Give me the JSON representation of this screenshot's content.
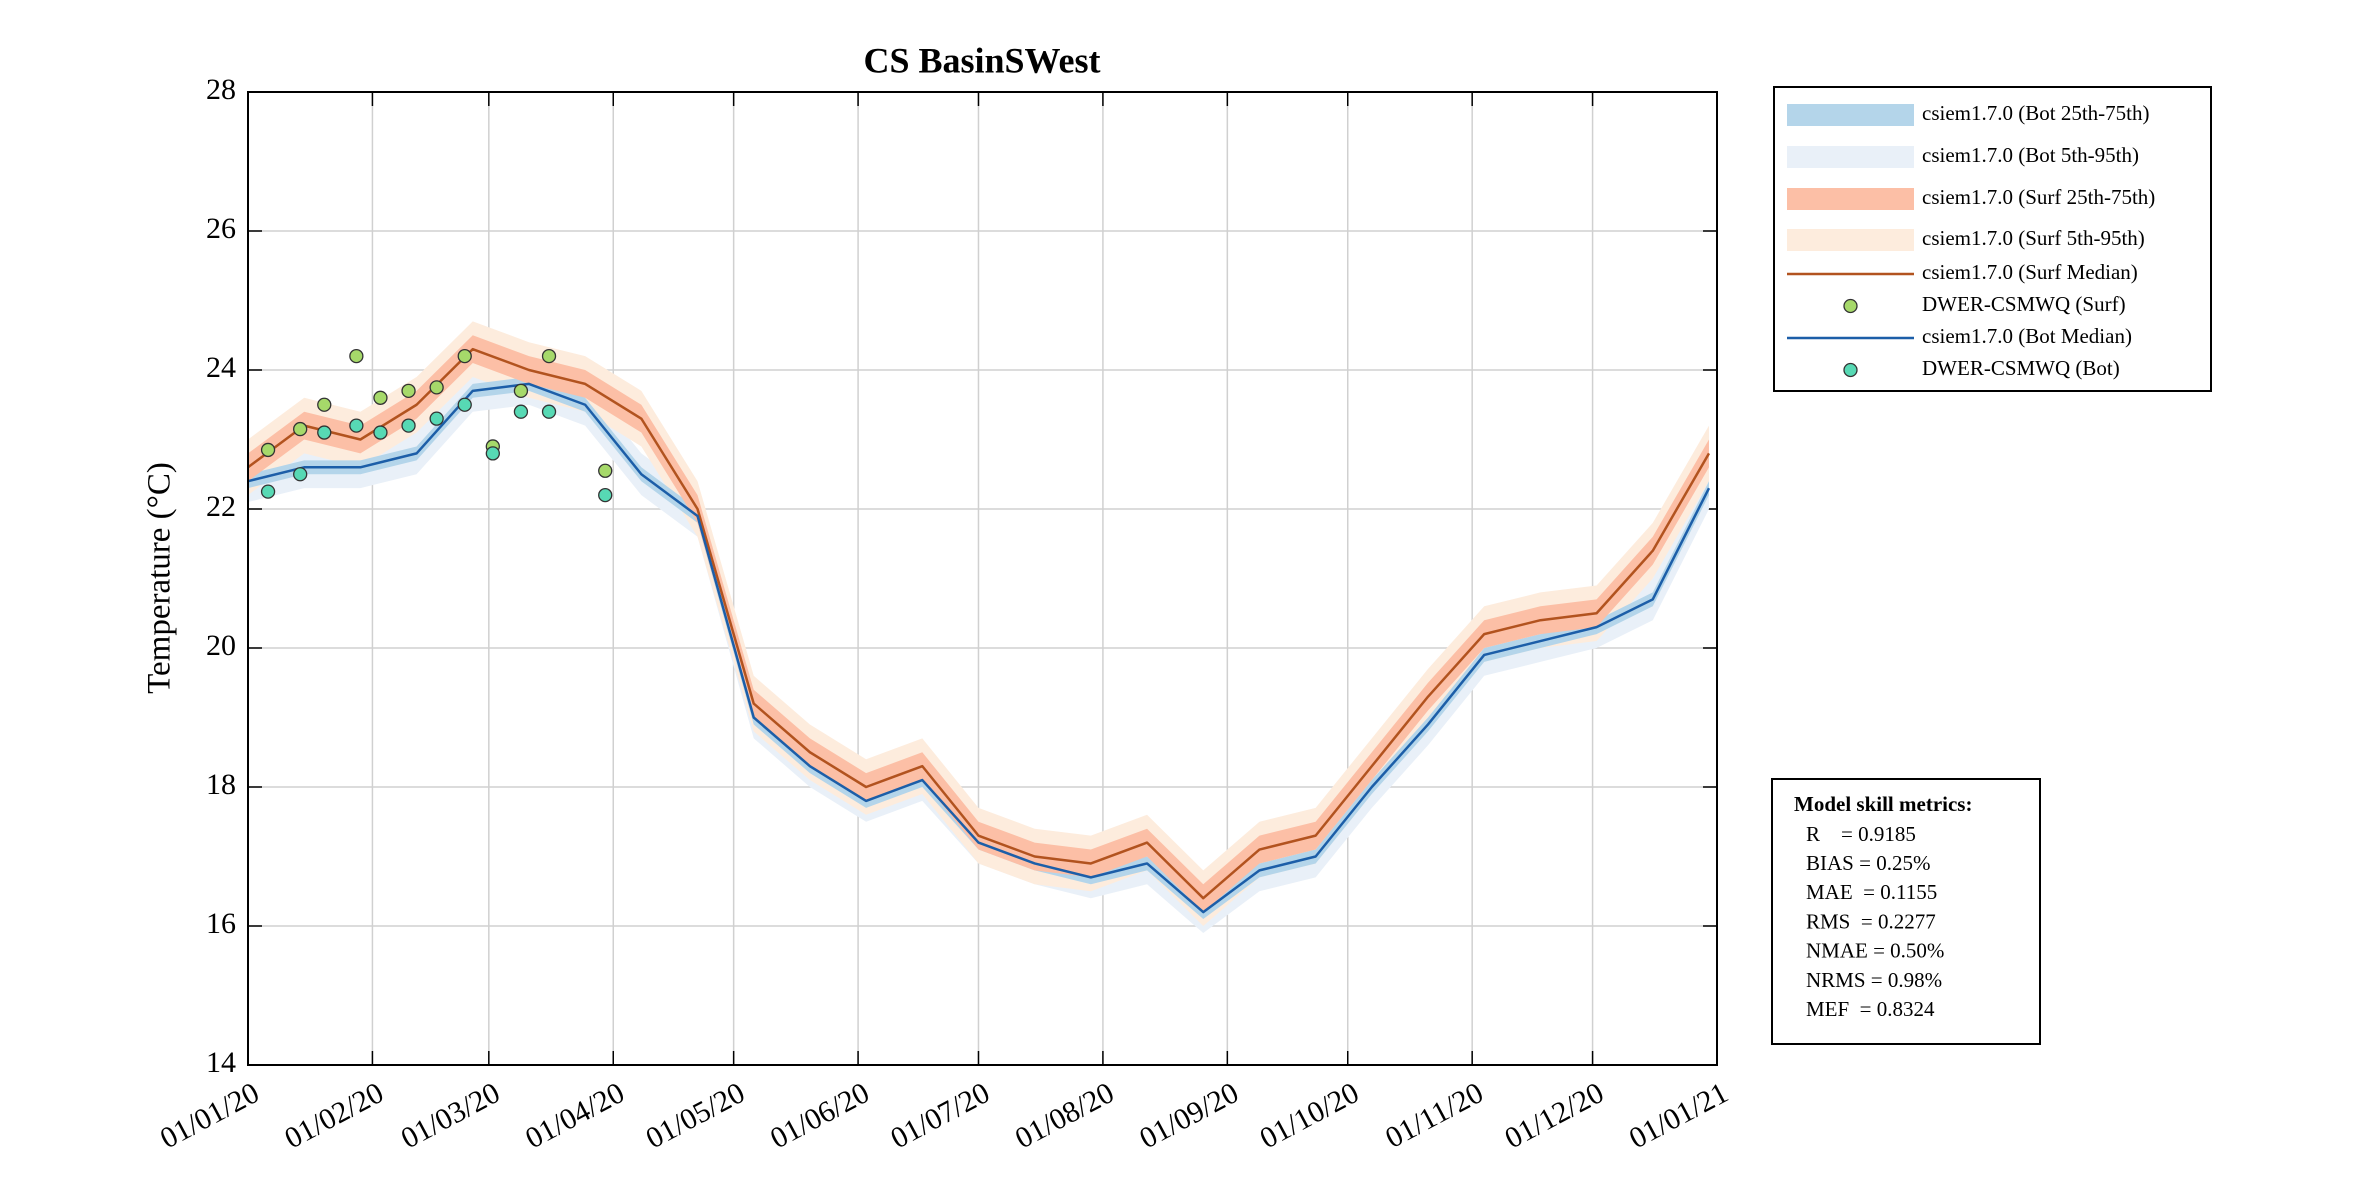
{
  "chart_data": {
    "type": "line",
    "title": "CS BasinSWest",
    "ylabel": "Temperature (°C)",
    "xlim": [
      "2020-01-01",
      "2021-01-01"
    ],
    "xticks": [
      {
        "value": "2020-01-01",
        "label": "01/01/20"
      },
      {
        "value": "2020-02-01",
        "label": "01/02/20"
      },
      {
        "value": "2020-03-01",
        "label": "01/03/20"
      },
      {
        "value": "2020-04-01",
        "label": "01/04/20"
      },
      {
        "value": "2020-05-01",
        "label": "01/05/20"
      },
      {
        "value": "2020-06-01",
        "label": "01/06/20"
      },
      {
        "value": "2020-07-01",
        "label": "01/07/20"
      },
      {
        "value": "2020-08-01",
        "label": "01/08/20"
      },
      {
        "value": "2020-09-01",
        "label": "01/09/20"
      },
      {
        "value": "2020-10-01",
        "label": "01/10/20"
      },
      {
        "value": "2020-11-01",
        "label": "01/11/20"
      },
      {
        "value": "2020-12-01",
        "label": "01/12/20"
      },
      {
        "value": "2021-01-01",
        "label": "01/01/21"
      }
    ],
    "ylim": [
      14,
      28
    ],
    "yticks": [
      14,
      16,
      18,
      20,
      22,
      24,
      26,
      28
    ],
    "grid": true,
    "legend": "outside-right-top",
    "x": [
      "2020-01-01",
      "2020-01-15",
      "2020-01-29",
      "2020-02-12",
      "2020-02-26",
      "2020-03-11",
      "2020-03-25",
      "2020-04-08",
      "2020-04-22",
      "2020-05-06",
      "2020-05-20",
      "2020-06-03",
      "2020-06-17",
      "2020-07-01",
      "2020-07-15",
      "2020-07-29",
      "2020-08-12",
      "2020-08-26",
      "2020-09-09",
      "2020-09-23",
      "2020-10-07",
      "2020-10-21",
      "2020-11-04",
      "2020-11-18",
      "2020-12-02",
      "2020-12-16",
      "2020-12-30"
    ],
    "series": [
      {
        "name": "csiem1.7.0 (Bot 25th-75th)",
        "style": "band",
        "color": "#b4d5ea",
        "lower": [
          22.3,
          22.5,
          22.5,
          22.7,
          23.6,
          23.7,
          23.4,
          22.4,
          21.8,
          18.9,
          18.2,
          17.7,
          18.0,
          17.1,
          16.8,
          16.6,
          16.8,
          16.1,
          16.7,
          16.9,
          17.9,
          18.8,
          19.8,
          20.0,
          20.2,
          20.6,
          22.2
        ],
        "upper": [
          22.5,
          22.7,
          22.7,
          22.9,
          23.8,
          23.9,
          23.6,
          22.6,
          22.0,
          19.1,
          18.4,
          17.9,
          18.2,
          17.3,
          17.0,
          16.8,
          17.0,
          16.3,
          16.9,
          17.1,
          18.1,
          19.0,
          20.0,
          20.2,
          20.4,
          20.8,
          22.4
        ]
      },
      {
        "name": "csiem1.7.0 (Bot 5th-95th)",
        "style": "band",
        "color": "#e9f0f8",
        "lower": [
          22.1,
          22.3,
          22.3,
          22.5,
          23.4,
          23.5,
          23.2,
          22.2,
          21.6,
          18.7,
          18.0,
          17.5,
          17.8,
          16.9,
          16.6,
          16.4,
          16.6,
          15.9,
          16.5,
          16.7,
          17.7,
          18.6,
          19.6,
          19.8,
          20.0,
          20.4,
          22.0
        ],
        "upper": [
          22.7,
          22.9,
          22.9,
          23.1,
          24.0,
          24.1,
          23.8,
          22.8,
          22.2,
          19.3,
          18.6,
          18.1,
          18.4,
          17.5,
          17.2,
          17.0,
          17.2,
          16.5,
          17.1,
          17.3,
          18.3,
          19.2,
          20.2,
          20.4,
          20.6,
          21.0,
          22.6
        ]
      },
      {
        "name": "csiem1.7.0 (Surf 25th-75th)",
        "style": "band",
        "color": "#fcbfa6",
        "lower": [
          22.4,
          23.0,
          22.8,
          23.3,
          24.1,
          23.8,
          23.6,
          23.1,
          21.8,
          19.0,
          18.3,
          17.8,
          18.1,
          17.1,
          16.8,
          16.7,
          17.0,
          16.2,
          16.9,
          17.1,
          18.1,
          19.1,
          20.0,
          20.2,
          20.3,
          21.2,
          22.6
        ],
        "upper": [
          22.8,
          23.4,
          23.2,
          23.7,
          24.5,
          24.2,
          24.0,
          23.5,
          22.2,
          19.4,
          18.7,
          18.2,
          18.5,
          17.5,
          17.2,
          17.1,
          17.4,
          16.6,
          17.3,
          17.5,
          18.5,
          19.5,
          20.4,
          20.6,
          20.7,
          21.6,
          23.0
        ]
      },
      {
        "name": "csiem1.7.0 (Surf 5th-95th)",
        "style": "band",
        "color": "#fdecdd",
        "lower": [
          22.2,
          22.8,
          22.6,
          23.1,
          23.9,
          23.6,
          23.4,
          22.9,
          21.6,
          18.8,
          18.1,
          17.6,
          17.9,
          16.9,
          16.6,
          16.5,
          16.8,
          16.0,
          16.7,
          16.9,
          17.9,
          18.9,
          19.8,
          20.0,
          20.1,
          21.0,
          22.4
        ],
        "upper": [
          23.0,
          23.6,
          23.4,
          23.9,
          24.7,
          24.4,
          24.2,
          23.7,
          22.4,
          19.6,
          18.9,
          18.4,
          18.7,
          17.7,
          17.4,
          17.3,
          17.6,
          16.8,
          17.5,
          17.7,
          18.7,
          19.7,
          20.6,
          20.8,
          20.9,
          21.8,
          23.2
        ]
      },
      {
        "name": "csiem1.7.0 (Surf Median)",
        "style": "line",
        "color": "#b2531f",
        "values": [
          22.6,
          23.2,
          23.0,
          23.5,
          24.3,
          24.0,
          23.8,
          23.3,
          22.0,
          19.2,
          18.5,
          18.0,
          18.3,
          17.3,
          17.0,
          16.9,
          17.2,
          16.4,
          17.1,
          17.3,
          18.3,
          19.3,
          20.2,
          20.4,
          20.5,
          21.4,
          22.8
        ]
      },
      {
        "name": "DWER-CSMWQ (Surf)",
        "style": "marker",
        "color": "#a6d96a",
        "x": [
          "2020-01-06",
          "2020-01-14",
          "2020-01-20",
          "2020-01-28",
          "2020-02-03",
          "2020-02-10",
          "2020-02-17",
          "2020-02-24",
          "2020-03-02",
          "2020-03-09",
          "2020-03-16",
          "2020-03-30"
        ],
        "values": [
          22.85,
          23.15,
          23.5,
          24.2,
          23.6,
          23.7,
          23.75,
          24.2,
          22.9,
          23.7,
          24.2,
          22.55
        ]
      },
      {
        "name": "csiem1.7.0 (Bot Median)",
        "style": "line",
        "color": "#1c5ea8",
        "values": [
          22.4,
          22.6,
          22.6,
          22.8,
          23.7,
          23.8,
          23.5,
          22.5,
          21.9,
          19.0,
          18.3,
          17.8,
          18.1,
          17.2,
          16.9,
          16.7,
          16.9,
          16.2,
          16.8,
          17.0,
          18.0,
          18.9,
          19.9,
          20.1,
          20.3,
          20.7,
          22.3
        ]
      },
      {
        "name": "DWER-CSMWQ (Bot)",
        "style": "marker",
        "color": "#57d9b4",
        "x": [
          "2020-01-06",
          "2020-01-14",
          "2020-01-20",
          "2020-01-28",
          "2020-02-03",
          "2020-02-10",
          "2020-02-17",
          "2020-02-24",
          "2020-03-02",
          "2020-03-09",
          "2020-03-16",
          "2020-03-30"
        ],
        "values": [
          22.25,
          22.5,
          23.1,
          23.2,
          23.1,
          23.2,
          23.3,
          23.5,
          22.8,
          23.4,
          23.4,
          22.2
        ]
      }
    ],
    "metrics": {
      "title": "Model skill metrics:",
      "items": [
        "R    = 0.9185",
        "BIAS = 0.25%",
        "MAE  = 0.1155",
        "RMS  = 0.2277",
        "NMAE = 0.50%",
        "NRMS = 0.98%",
        "MEF  = 0.8324"
      ]
    }
  }
}
